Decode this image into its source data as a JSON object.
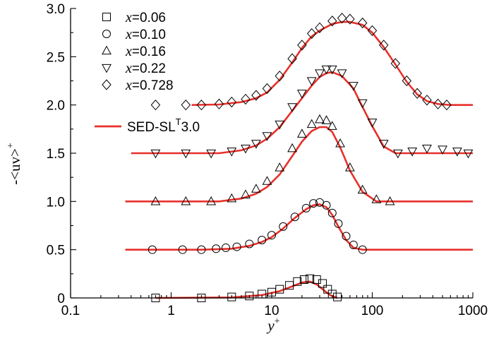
{
  "chart_data": {
    "type": "scatter",
    "title": "",
    "xlabel": "y",
    "xlabel_superscript": "+",
    "ylabel": "-<uv>",
    "ylabel_superscript": "+",
    "xscale": "log",
    "xlim": [
      0.1,
      1000
    ],
    "ylim": [
      0,
      3.0
    ],
    "x_tick_labels": [
      "0.1",
      "1",
      "10",
      "100",
      "1000"
    ],
    "y_tick_labels": [
      "0",
      "0.5",
      "1.0",
      "1.5",
      "2.0",
      "2.5",
      "3.0"
    ],
    "legend": {
      "placement": "top-left",
      "entries": [
        {
          "symbol": "square",
          "var": "x",
          "text": "=0.06"
        },
        {
          "symbol": "circle",
          "var": "x",
          "text": "=0.10"
        },
        {
          "symbol": "triangle-up",
          "var": "x",
          "text": "=0.16"
        },
        {
          "symbol": "triangle-down",
          "var": "x",
          "text": "=0.22"
        },
        {
          "symbol": "diamond",
          "var": "x",
          "text": "=0.728"
        }
      ],
      "line_entry": {
        "label": "SED-SL",
        "superscript": "T",
        "suffix": "3.0",
        "color": "#e8302a"
      }
    },
    "series": [
      {
        "name": "x=0.06",
        "marker": "square",
        "offset": 0.0,
        "x": [
          0.7,
          2,
          4,
          6,
          8,
          10,
          12,
          15,
          18,
          21,
          24,
          28,
          32,
          36,
          40,
          45
        ],
        "y": [
          0.0,
          0.0,
          0.01,
          0.02,
          0.04,
          0.06,
          0.09,
          0.13,
          0.17,
          0.19,
          0.2,
          0.19,
          0.15,
          0.09,
          0.04,
          0.01
        ]
      },
      {
        "name": "x=0.10",
        "marker": "circle",
        "offset": 0.5,
        "x": [
          0.65,
          1.3,
          2,
          2.8,
          3.5,
          4.5,
          6,
          8,
          10,
          13,
          17,
          22,
          26,
          30,
          35,
          40,
          46,
          55,
          65,
          80
        ],
        "y": [
          0.0,
          0.0,
          0.0,
          0.01,
          0.02,
          0.03,
          0.06,
          0.1,
          0.15,
          0.24,
          0.34,
          0.43,
          0.48,
          0.49,
          0.46,
          0.38,
          0.27,
          0.14,
          0.05,
          0.0
        ]
      },
      {
        "name": "x=0.16",
        "marker": "triangle-up",
        "offset": 1.0,
        "x": [
          0.7,
          1.4,
          2.5,
          4,
          5.5,
          7,
          9,
          12,
          16,
          20,
          25,
          30,
          35,
          40,
          48,
          60,
          80,
          110,
          150
        ],
        "y": [
          0.0,
          0.0,
          0.0,
          0.03,
          0.07,
          0.13,
          0.21,
          0.35,
          0.55,
          0.7,
          0.8,
          0.85,
          0.84,
          0.78,
          0.6,
          0.35,
          0.12,
          0.02,
          0.0
        ]
      },
      {
        "name": "x=0.22",
        "marker": "triangle-down",
        "offset": 1.5,
        "x": [
          0.7,
          1.4,
          2.5,
          4,
          5.5,
          7,
          9,
          12,
          16,
          20,
          25,
          30,
          35,
          40,
          50,
          65,
          80,
          100,
          130,
          180,
          250,
          350,
          500,
          700,
          900
        ],
        "y": [
          0.0,
          0.0,
          0.0,
          0.02,
          0.05,
          0.1,
          0.18,
          0.3,
          0.48,
          0.62,
          0.75,
          0.83,
          0.87,
          0.87,
          0.83,
          0.7,
          0.52,
          0.32,
          0.1,
          0.0,
          0.02,
          0.05,
          0.04,
          0.02,
          0.0
        ]
      },
      {
        "name": "x=0.728",
        "marker": "diamond",
        "offset": 2.0,
        "x": [
          0.7,
          1.4,
          2,
          3,
          4,
          5.5,
          7,
          9,
          12,
          16,
          20,
          25,
          30,
          40,
          50,
          60,
          80,
          100,
          130,
          170,
          220,
          280,
          350,
          450,
          550
        ],
        "y": [
          0.0,
          0.0,
          0.0,
          0.01,
          0.03,
          0.06,
          0.1,
          0.17,
          0.3,
          0.48,
          0.62,
          0.74,
          0.8,
          0.87,
          0.9,
          0.89,
          0.85,
          0.77,
          0.62,
          0.43,
          0.25,
          0.12,
          0.05,
          0.01,
          0.0
        ]
      }
    ],
    "model_curves": [
      {
        "name": "SED-SL 3.0 (x=0.06)",
        "offset": 0.0,
        "x_start": 0.7,
        "x_end": 45,
        "x": [
          0.7,
          4,
          8,
          12,
          16,
          20,
          24,
          28,
          33,
          38,
          45
        ],
        "y": [
          0,
          0.005,
          0.03,
          0.07,
          0.12,
          0.16,
          0.17,
          0.14,
          0.08,
          0.03,
          0
        ]
      },
      {
        "name": "SED-SL 3.0 (x=0.10)",
        "offset": 0.5,
        "x_start": 0.35,
        "x_end": 1000,
        "x": [
          0.35,
          2,
          4,
          6,
          8,
          10,
          13,
          17,
          22,
          26,
          30,
          35,
          40,
          46,
          55,
          65,
          80,
          1000
        ],
        "y": [
          0,
          0,
          0.01,
          0.04,
          0.08,
          0.13,
          0.22,
          0.33,
          0.42,
          0.46,
          0.47,
          0.44,
          0.36,
          0.24,
          0.1,
          0.02,
          0,
          0
        ]
      },
      {
        "name": "SED-SL 3.0 (x=0.16)",
        "offset": 1.0,
        "x_start": 0.35,
        "x_end": 1000,
        "x": [
          0.35,
          3,
          5,
          7,
          9,
          12,
          16,
          20,
          25,
          30,
          35,
          40,
          48,
          60,
          80,
          110,
          1000
        ],
        "y": [
          0,
          0,
          0.03,
          0.08,
          0.15,
          0.28,
          0.47,
          0.62,
          0.73,
          0.77,
          0.77,
          0.72,
          0.56,
          0.32,
          0.1,
          0,
          0
        ]
      },
      {
        "name": "SED-SL 3.0 (x=0.22)",
        "offset": 1.5,
        "x_start": 0.4,
        "x_end": 1000,
        "x": [
          0.4,
          3,
          5,
          7,
          9,
          12,
          16,
          20,
          25,
          30,
          35,
          40,
          50,
          65,
          80,
          100,
          130,
          170,
          1000
        ],
        "y": [
          0,
          0,
          0.03,
          0.08,
          0.15,
          0.27,
          0.44,
          0.57,
          0.7,
          0.79,
          0.83,
          0.84,
          0.8,
          0.67,
          0.48,
          0.28,
          0.07,
          0,
          0
        ]
      },
      {
        "name": "SED-SL 3.0 (x=0.728)",
        "offset": 2.0,
        "x_start": 1.6,
        "x_end": 1000,
        "x": [
          1.6,
          3,
          5,
          7,
          9,
          12,
          16,
          20,
          25,
          30,
          40,
          50,
          60,
          80,
          100,
          130,
          170,
          220,
          280,
          350,
          450,
          600,
          1000
        ],
        "y": [
          0,
          0.005,
          0.03,
          0.07,
          0.13,
          0.26,
          0.44,
          0.59,
          0.71,
          0.77,
          0.84,
          0.86,
          0.86,
          0.83,
          0.75,
          0.6,
          0.42,
          0.24,
          0.11,
          0.04,
          0.01,
          0,
          0
        ]
      }
    ],
    "colors": {
      "model": "#e8302a",
      "markers": "#000000",
      "axes": "#000000"
    }
  }
}
